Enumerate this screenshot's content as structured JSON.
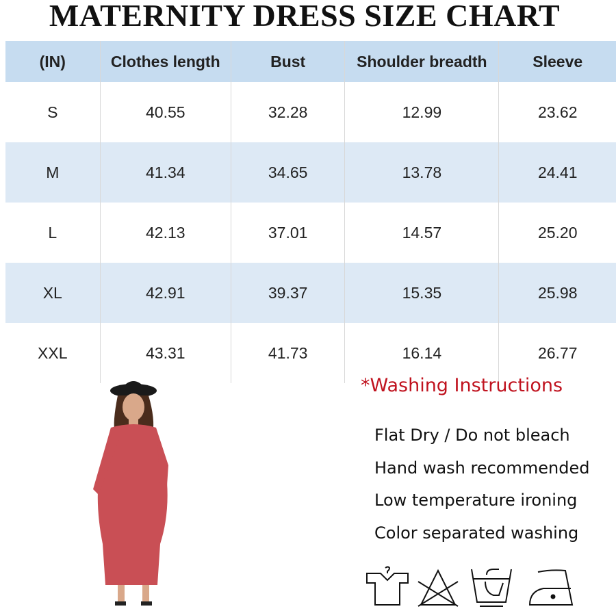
{
  "title": "MATERNITY DRESS SIZE CHART",
  "table": {
    "headers": [
      "(IN)",
      "Clothes length",
      "Bust",
      "Shoulder breadth",
      "Sleeve"
    ],
    "rows": [
      [
        "S",
        "40.55",
        "32.28",
        "12.99",
        "23.62"
      ],
      [
        "M",
        "41.34",
        "34.65",
        "13.78",
        "24.41"
      ],
      [
        "L",
        "42.13",
        "37.01",
        "14.57",
        "25.20"
      ],
      [
        "XL",
        "42.91",
        "39.37",
        "15.35",
        "25.98"
      ],
      [
        "XXL",
        "43.31",
        "41.73",
        "16.14",
        "26.77"
      ]
    ]
  },
  "washing": {
    "title": "*Washing Instructions",
    "items": [
      "Flat Dry / Do not  bleach",
      "Hand wash recommended",
      "Low temperature ironing",
      "Color separated washing"
    ],
    "icons": [
      "flat-dry-icon",
      "do-not-bleach-icon",
      "hand-wash-icon",
      "low-temperature-iron-icon"
    ]
  },
  "colors": {
    "header": "#c6dcf0",
    "stripe": "#dde9f5",
    "accent": "#c0131f",
    "dress": "#c94f55"
  }
}
